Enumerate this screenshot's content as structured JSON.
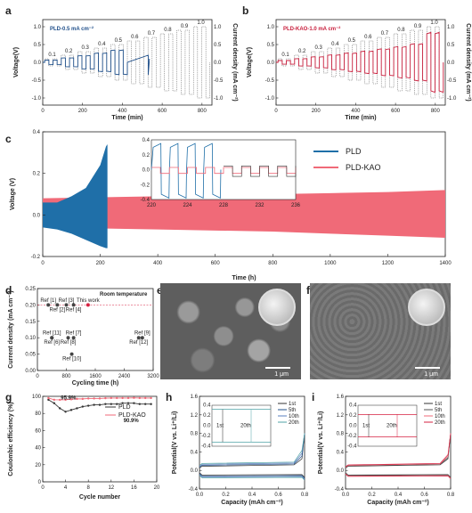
{
  "panels": {
    "a": {
      "label": "a",
      "legend": "PLD-0.5 mA cm⁻²",
      "xlabel": "Time (min)",
      "ylabel_left": "Voltage(V)",
      "ylabel_right": "Current density (mA cm⁻²)"
    },
    "b": {
      "label": "b",
      "legend": "PLD-KAO-1.0 mA cm⁻²",
      "xlabel": "Time (min)",
      "ylabel_left": "Voltage(V)",
      "ylabel_right": "Current density (mA cm⁻²)"
    },
    "c": {
      "label": "c",
      "xlabel": "Time (h)",
      "ylabel": "Voltage (V)"
    },
    "d": {
      "label": "d",
      "title": "Room temperature",
      "xlabel": "Cycling time (h)",
      "ylabel": "Current density (mA cm⁻²)"
    },
    "e": {
      "label": "e",
      "scale": "1 μm"
    },
    "f": {
      "label": "f",
      "scale": "1 μm"
    },
    "g": {
      "label": "g",
      "xlabel": "Cycle number",
      "ylabel": "Coulombic efficiency (%)"
    },
    "h": {
      "label": "h",
      "xlabel": "Capacity (mAh cm⁻²)",
      "ylabel": "Potential(V vs. Li⁺/Li)"
    },
    "i": {
      "label": "i",
      "xlabel": "Capacity (mAh cm⁻²)",
      "ylabel": "Potential(V vs. Li⁺/Li)"
    }
  },
  "chart_data": [
    {
      "id": "a",
      "type": "line",
      "xlim": [
        0,
        850
      ],
      "xticks": [
        0,
        200,
        400,
        600,
        800
      ],
      "ylim": [
        -1.2,
        1.2
      ],
      "yticks": [
        -1.0,
        -0.5,
        0.0,
        0.5,
        1.0
      ],
      "current_steps": [
        "0.1",
        "0.2",
        "0.3",
        "0.4",
        "0.5",
        "0.6",
        "0.7",
        "0.8",
        "0.9",
        "1.0"
      ],
      "step_current_values": [
        0.1,
        0.2,
        0.3,
        0.4,
        0.5,
        0.6,
        0.7,
        0.8,
        0.9,
        1.0
      ],
      "voltage_plateaus": [
        0.06,
        0.12,
        0.18,
        0.25,
        0.33
      ],
      "fail_time": 530,
      "colors": {
        "voltage": "#1f4f8a",
        "current": "#555555"
      }
    },
    {
      "id": "b",
      "type": "line",
      "xlim": [
        0,
        850
      ],
      "xticks": [
        0,
        200,
        400,
        600,
        800
      ],
      "ylim": [
        -1.2,
        1.2
      ],
      "yticks": [
        -1.0,
        -0.5,
        0.0,
        0.5,
        1.0
      ],
      "current_steps": [
        "0.1",
        "0.2",
        "0.3",
        "0.4",
        "0.5",
        "0.6",
        "0.7",
        "0.8",
        "0.9",
        "1.0"
      ],
      "step_current_values": [
        0.1,
        0.2,
        0.3,
        0.4,
        0.5,
        0.6,
        0.7,
        0.8,
        0.9,
        1.0
      ],
      "voltage_plateaus": [
        0.05,
        0.1,
        0.15,
        0.2,
        0.25,
        0.3,
        0.36,
        0.42,
        0.5,
        0.8
      ],
      "colors": {
        "voltage": "#c81e3c",
        "current": "#555555"
      }
    },
    {
      "id": "c",
      "type": "area",
      "xlim": [
        0,
        1400
      ],
      "xticks": [
        0,
        200,
        400,
        600,
        800,
        1000,
        1200,
        1400
      ],
      "ylim": [
        -0.2,
        0.4
      ],
      "yticks": [
        -0.2,
        0.0,
        0.2,
        0.4
      ],
      "series": [
        {
          "name": "PLD",
          "color": "#1f6fa8",
          "x": [
            0,
            50,
            100,
            150,
            200,
            220,
            225
          ],
          "upper": [
            0.06,
            0.06,
            0.09,
            0.13,
            0.24,
            0.33,
            0.34
          ],
          "lower": [
            -0.06,
            -0.07,
            -0.09,
            -0.12,
            -0.15,
            -0.16,
            -0.16
          ]
        },
        {
          "name": "PLD-KAO",
          "color": "#f06a78",
          "x": [
            0,
            200,
            400,
            600,
            800,
            1000,
            1200,
            1400
          ],
          "upper": [
            0.08,
            0.085,
            0.09,
            0.095,
            0.1,
            0.105,
            0.11,
            0.12
          ],
          "lower": [
            -0.06,
            -0.065,
            -0.07,
            -0.075,
            -0.08,
            -0.09,
            -0.1,
            -0.11
          ]
        }
      ],
      "inset": {
        "xlim": [
          220,
          236
        ],
        "xticks": [
          220,
          224,
          228,
          232,
          236
        ],
        "ylim": [
          -0.4,
          0.4
        ],
        "yticks": [
          -0.4,
          -0.2,
          0.0,
          0.2,
          0.4
        ]
      }
    },
    {
      "id": "d",
      "type": "scatter",
      "xlim": [
        0,
        3200
      ],
      "xticks": [
        0,
        800,
        1600,
        2400,
        3200
      ],
      "ylim": [
        0,
        0.25
      ],
      "yticks": [
        0.0,
        0.05,
        0.1,
        0.15,
        0.2,
        0.25
      ],
      "points": [
        {
          "label": "Ref [1]",
          "x": 300,
          "y": 0.2
        },
        {
          "label": "Ref [2]",
          "x": 550,
          "y": 0.2
        },
        {
          "label": "Ref [3]",
          "x": 800,
          "y": 0.2
        },
        {
          "label": "Ref [4]",
          "x": 1000,
          "y": 0.2
        },
        {
          "label": "This work",
          "x": 1400,
          "y": 0.2,
          "highlight": true
        },
        {
          "label": "Ref [6]",
          "x": 400,
          "y": 0.1
        },
        {
          "label": "Ref [7]",
          "x": 1000,
          "y": 0.1
        },
        {
          "label": "Ref [8]",
          "x": 850,
          "y": 0.1
        },
        {
          "label": "Ref [9]",
          "x": 2900,
          "y": 0.1
        },
        {
          "label": "Ref [10]",
          "x": 950,
          "y": 0.05
        },
        {
          "label": "Ref [11]",
          "x": 400,
          "y": 0.1
        },
        {
          "label": "Ref [12]",
          "x": 2800,
          "y": 0.1
        }
      ]
    },
    {
      "id": "g",
      "type": "line",
      "xlim": [
        0,
        20
      ],
      "xticks": [
        0,
        4,
        8,
        12,
        16,
        20
      ],
      "ylim": [
        0,
        100
      ],
      "yticks": [
        0,
        20,
        40,
        60,
        80,
        100
      ],
      "series": [
        {
          "name": "PLD",
          "color": "#333333",
          "x": [
            1,
            2,
            3,
            4,
            5,
            6,
            7,
            8,
            9,
            10,
            11,
            12,
            13,
            14,
            15,
            16,
            17,
            18,
            19
          ],
          "values": [
            96,
            92,
            86,
            82,
            84,
            86,
            88,
            89,
            90,
            90,
            91,
            91,
            91,
            92,
            92,
            92,
            91,
            91,
            90.9
          ]
        },
        {
          "name": "PLD-KAO",
          "color": "#f06a78",
          "x": [
            1,
            2,
            3,
            4,
            5,
            6,
            7,
            8,
            9,
            10,
            11,
            12,
            13,
            14,
            15,
            16,
            17,
            18,
            19
          ],
          "values": [
            98,
            96,
            95.9,
            96,
            96.5,
            97,
            97,
            97.5,
            97.5,
            97.5,
            97.8,
            98,
            98,
            98,
            98,
            98.2,
            98,
            98,
            98
          ]
        }
      ],
      "annotations": [
        "95.9%",
        "90.9%"
      ]
    },
    {
      "id": "h",
      "type": "line",
      "xlim": [
        0,
        0.8
      ],
      "xticks": [
        0.0,
        0.2,
        0.4,
        0.6,
        0.8
      ],
      "ylim": [
        -0.4,
        1.6
      ],
      "yticks": [
        -0.4,
        0.0,
        0.4,
        0.8,
        1.2,
        1.6
      ],
      "series": [
        {
          "name": "1st",
          "color": "#333333"
        },
        {
          "name": "5th",
          "color": "#1f4f8a"
        },
        {
          "name": "10th",
          "color": "#5a7fbf"
        },
        {
          "name": "20th",
          "color": "#4fa3a6"
        }
      ],
      "inset": {
        "ylim": [
          -0.4,
          0.4
        ],
        "yticks": [
          -0.4,
          -0.2,
          0.0,
          0.2,
          0.4
        ],
        "labels": [
          "1st",
          "20th"
        ]
      }
    },
    {
      "id": "i",
      "type": "line",
      "xlim": [
        0,
        0.8
      ],
      "xticks": [
        0.0,
        0.2,
        0.4,
        0.6,
        0.8
      ],
      "ylim": [
        -0.4,
        1.6
      ],
      "yticks": [
        -0.4,
        0.0,
        0.4,
        0.8,
        1.2,
        1.6
      ],
      "series": [
        {
          "name": "1st",
          "color": "#333333"
        },
        {
          "name": "5th",
          "color": "#555555"
        },
        {
          "name": "10th",
          "color": "#f06a78"
        },
        {
          "name": "20th",
          "color": "#d62040"
        }
      ],
      "inset": {
        "ylim": [
          -0.4,
          0.4
        ],
        "yticks": [
          -0.4,
          -0.2,
          0.0,
          0.2,
          0.4
        ],
        "labels": [
          "1st",
          "20th"
        ]
      }
    }
  ]
}
